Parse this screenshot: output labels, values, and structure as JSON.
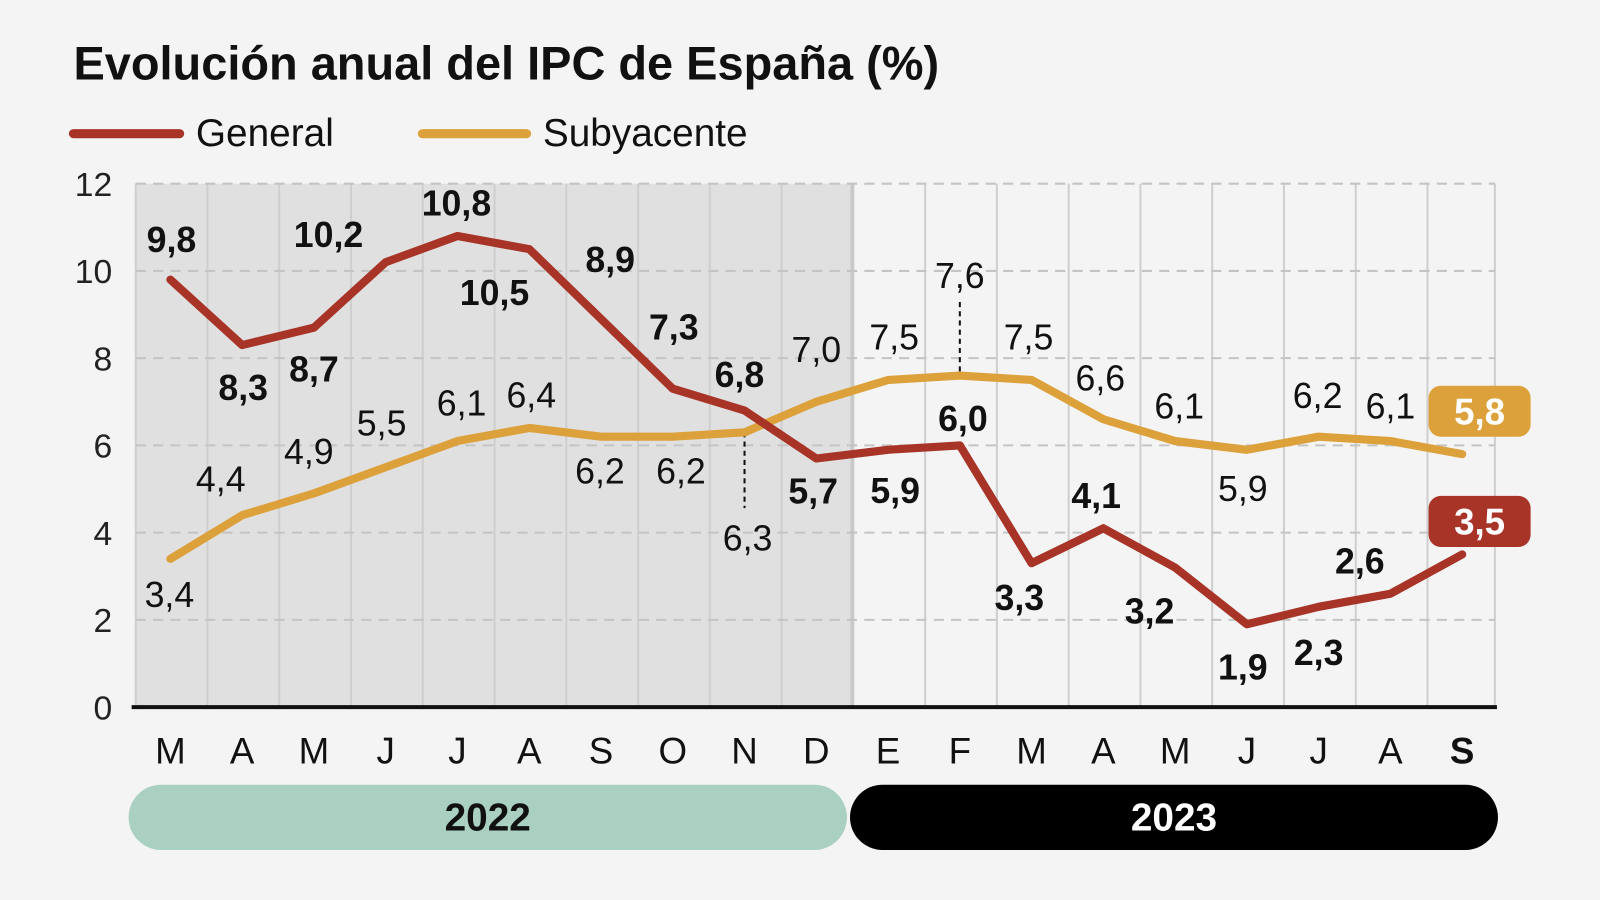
{
  "chart_data": {
    "type": "line",
    "title": "Evolución anual del IPC de España (%)",
    "categories": [
      "M",
      "A",
      "M",
      "J",
      "J",
      "A",
      "S",
      "O",
      "N",
      "D",
      "E",
      "F",
      "M",
      "A",
      "M",
      "J",
      "J",
      "A",
      "S"
    ],
    "year_groups": [
      {
        "label": "2022",
        "color": "#a9d0c0"
      },
      {
        "label": "2023",
        "color": "#000000"
      }
    ],
    "series": [
      {
        "name": "General",
        "color": "#a83428",
        "values": [
          9.8,
          8.3,
          8.7,
          10.2,
          10.8,
          10.5,
          8.9,
          7.3,
          6.8,
          5.7,
          5.9,
          6.0,
          3.3,
          4.1,
          3.2,
          1.9,
          2.3,
          2.6,
          3.5
        ]
      },
      {
        "name": "Subyacente",
        "color": "#dca13a",
        "values": [
          3.4,
          4.4,
          4.9,
          5.5,
          6.1,
          6.4,
          6.2,
          6.2,
          6.3,
          7.0,
          7.5,
          7.6,
          7.5,
          6.6,
          6.1,
          5.9,
          6.2,
          6.1,
          5.8
        ]
      }
    ],
    "ylim": [
      0,
      12
    ],
    "yticks": [
      0,
      2,
      4,
      6,
      8,
      10,
      12
    ],
    "grid": true,
    "shaded_period": "2022",
    "legend": "top-left"
  }
}
